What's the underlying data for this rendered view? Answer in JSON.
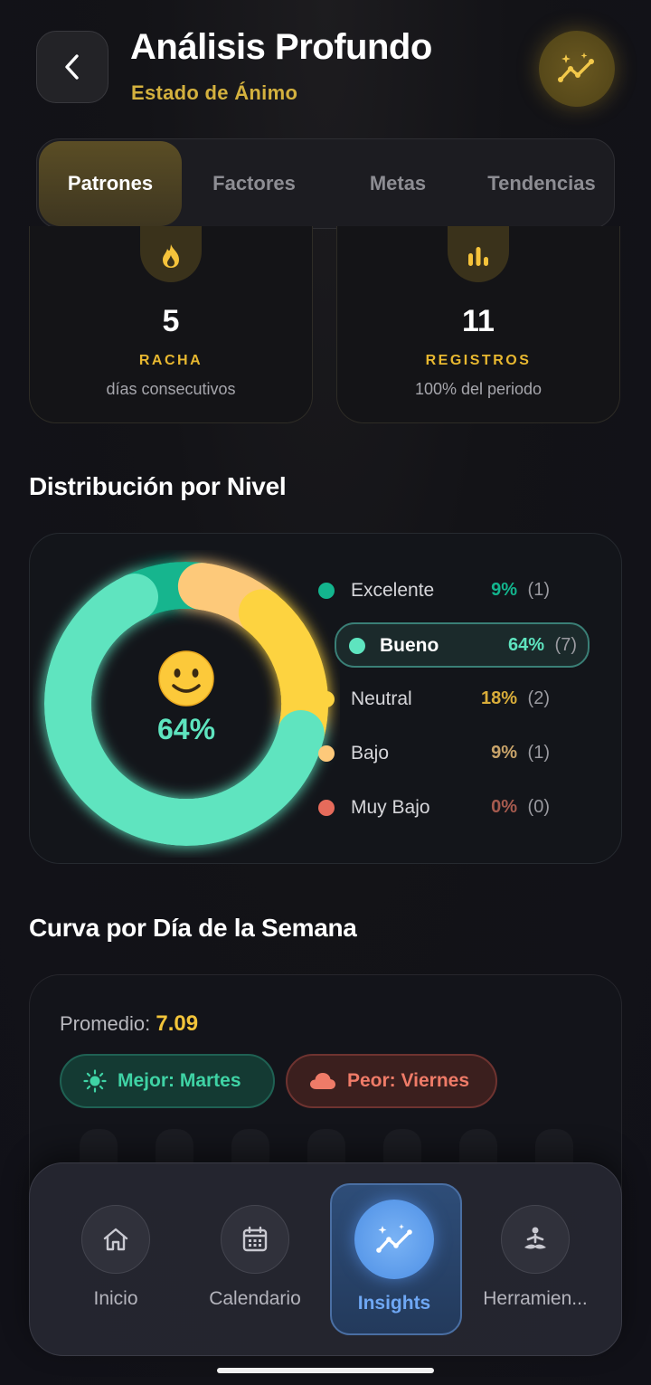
{
  "header": {
    "title": "Análisis Profundo",
    "subtitle": "Estado de Ánimo"
  },
  "tabs": [
    {
      "label": "Patrones",
      "active": true
    },
    {
      "label": "Factores",
      "active": false
    },
    {
      "label": "Metas",
      "active": false
    },
    {
      "label": "Tendencias",
      "active": false
    }
  ],
  "stats": {
    "streak": {
      "value": "5",
      "label": "RACHA",
      "sub": "días consecutivos",
      "icon": "flame-icon"
    },
    "records": {
      "value": "11",
      "label": "REGISTROS",
      "sub": "100% del periodo",
      "icon": "bar-chart-icon"
    }
  },
  "distribution": {
    "title": "Distribución por Nivel",
    "center_percent": "64%",
    "center_icon": "smiley-icon",
    "levels": [
      {
        "name": "Excelente",
        "percent": "9%",
        "count": "(1)",
        "color": "#13b58e",
        "value": 9
      },
      {
        "name": "Bueno",
        "percent": "64%",
        "count": "(7)",
        "color": "#5ee4bf",
        "value": 64,
        "selected": true
      },
      {
        "name": "Neutral",
        "percent": "18%",
        "count": "(2)",
        "color": "#fdd340",
        "value": 18
      },
      {
        "name": "Bajo",
        "percent": "9%",
        "count": "(1)",
        "color": "#fdc97a",
        "value": 9
      },
      {
        "name": "Muy Bajo",
        "percent": "0%",
        "count": "(0)",
        "color": "#e66b5b",
        "value": 0
      }
    ]
  },
  "week": {
    "title": "Curva por Día de la Semana",
    "average_label": "Promedio:",
    "average_value": "7.09",
    "best_label": "Mejor: Martes",
    "worst_label": "Peor: Viernes"
  },
  "nav": [
    {
      "label": "Inicio",
      "icon": "home-icon"
    },
    {
      "label": "Calendario",
      "icon": "calendar-icon"
    },
    {
      "label": "Insights",
      "icon": "insights-icon",
      "active": true
    },
    {
      "label": "Herramien...",
      "icon": "meditation-icon"
    }
  ],
  "colors": {
    "accent_gold": "#d4b13e",
    "accent_teal": "#5ee4bf",
    "accent_blue": "#6fa8f5"
  }
}
